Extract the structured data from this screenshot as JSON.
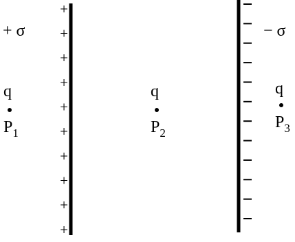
{
  "plates": {
    "left": {
      "charge_label": "+ σ",
      "sign": "+",
      "sign_count": 10
    },
    "right": {
      "charge_label": "− σ",
      "sign": "−",
      "sign_count": 12
    }
  },
  "points": [
    {
      "charge": "q",
      "name": "P",
      "subscript": "1"
    },
    {
      "charge": "q",
      "name": "P",
      "subscript": "2"
    },
    {
      "charge": "q",
      "name": "P",
      "subscript": "3"
    }
  ]
}
